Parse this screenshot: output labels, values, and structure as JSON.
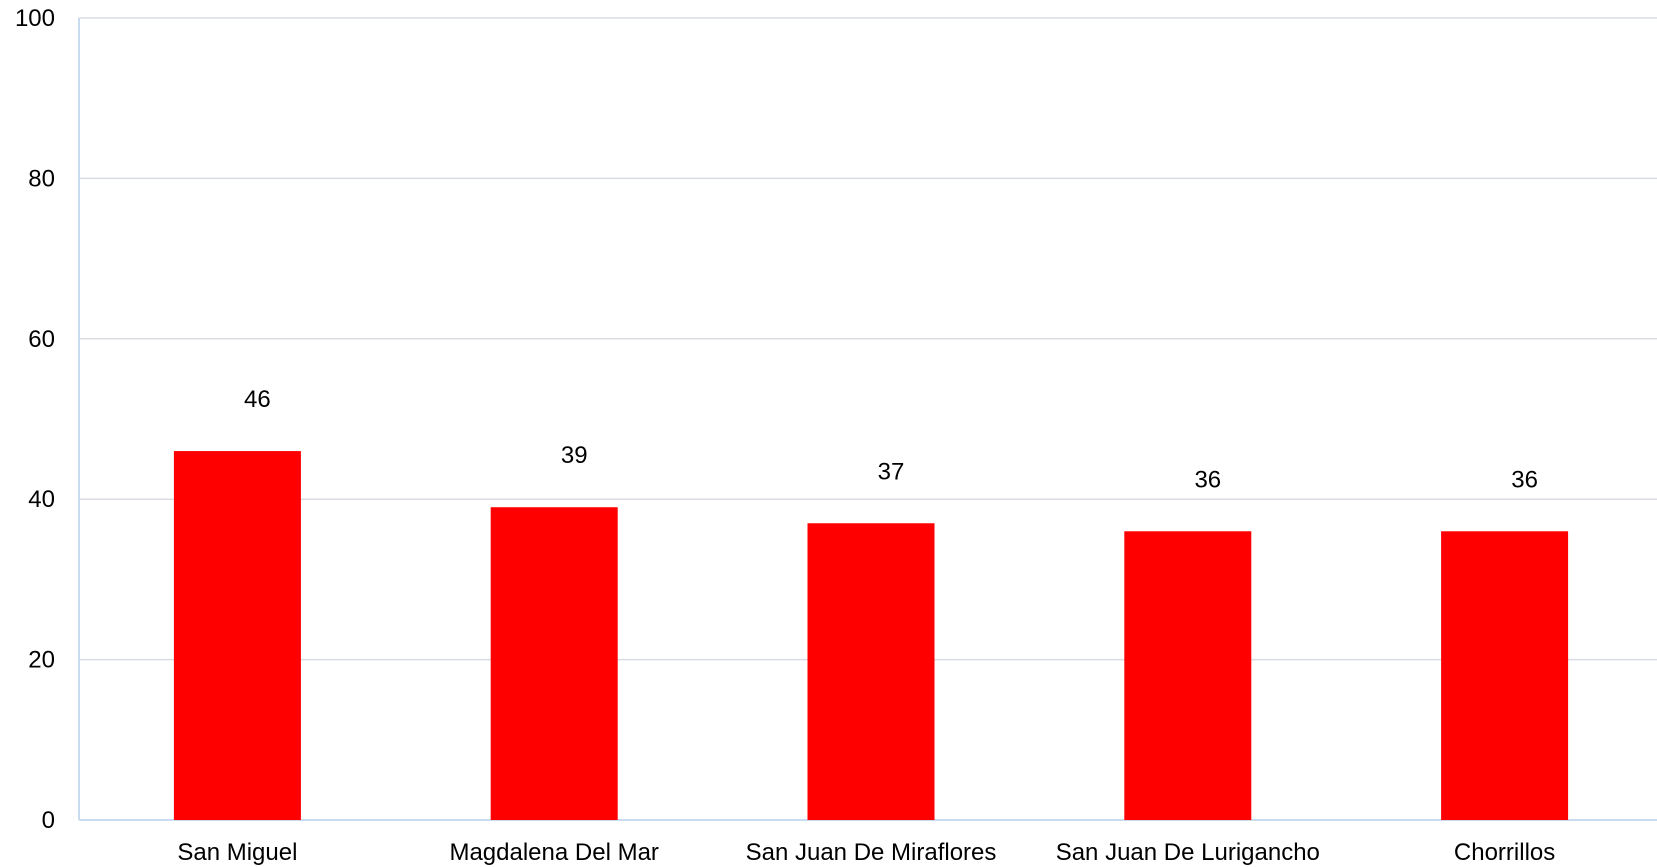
{
  "chart_data": {
    "type": "bar",
    "title": "",
    "xlabel": "",
    "ylabel": "",
    "categories": [
      "San Miguel",
      "Magdalena Del Mar",
      "San Juan De Miraflores",
      "San Juan De Lurigancho",
      "Chorrillos"
    ],
    "values": [
      46,
      39,
      37,
      36,
      36
    ],
    "data_labels": [
      "46",
      "39",
      "37",
      "36",
      "36"
    ],
    "ylim": [
      0,
      100
    ],
    "yticks": [
      0,
      20,
      40,
      60,
      80,
      100
    ],
    "grid": true,
    "legend": "none",
    "colors": {
      "bar": "#ff0000",
      "grid": "#d9dde3",
      "axis": "#c9dcef",
      "text": "#000000"
    }
  }
}
